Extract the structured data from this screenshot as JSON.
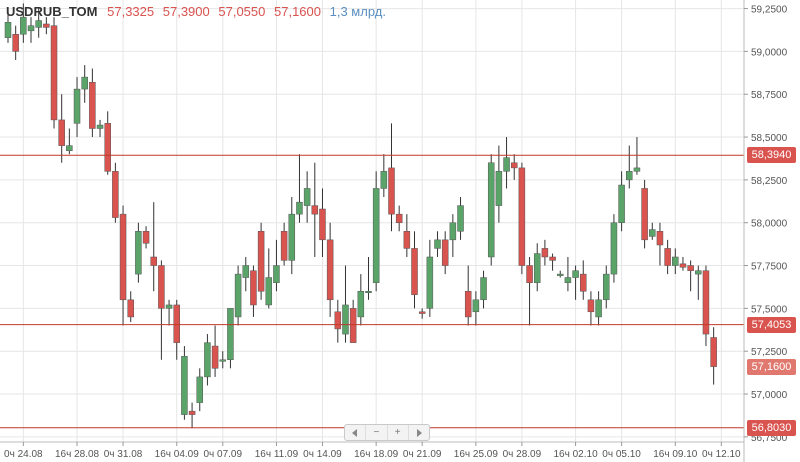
{
  "header": {
    "symbol": "USDRUB_TOM",
    "open": "57,3325",
    "high": "57,3900",
    "low": "57,0550",
    "close": "57,1600",
    "volume": "1,3 млрд."
  },
  "navigator": {
    "left_icon": "arrow-left-icon",
    "zoom_out_label": "−",
    "zoom_in_label": "+",
    "right_icon": "arrow-right-icon"
  },
  "colors": {
    "bull": "#5aa469",
    "bear": "#d9534f",
    "level_line": "#c0392b",
    "grid": "#e6e6e6",
    "axis_text": "#555555"
  },
  "price_tags": [
    {
      "label": "58,3940",
      "value": 58.394,
      "color": "#d9534f"
    },
    {
      "label": "57,4053",
      "value": 57.4053,
      "color": "#d9534f"
    },
    {
      "label": "57,1600",
      "value": 57.16,
      "color": "#e0786f"
    },
    {
      "label": "56,8030",
      "value": 56.803,
      "color": "#d9534f"
    }
  ],
  "chart_data": {
    "type": "candlestick",
    "ylim": [
      56.72,
      59.3
    ],
    "y_ticks": [
      {
        "label": "59,2500",
        "value": 59.25
      },
      {
        "label": "59,0000",
        "value": 59.0
      },
      {
        "label": "58,7500",
        "value": 58.75
      },
      {
        "label": "58,5000",
        "value": 58.5
      },
      {
        "label": "58,2500",
        "value": 58.25
      },
      {
        "label": "58,0000",
        "value": 58.0
      },
      {
        "label": "57,7500",
        "value": 57.75
      },
      {
        "label": "57,5000",
        "value": 57.5
      },
      {
        "label": "57,2500",
        "value": 57.25
      },
      {
        "label": "57,0000",
        "value": 57.0
      },
      {
        "label": "56,7500",
        "value": 56.75
      }
    ],
    "x_labels": [
      {
        "label": "0ч 24.08",
        "index": 2
      },
      {
        "label": "16ч 28.08",
        "index": 9
      },
      {
        "label": "0ч 31.08",
        "index": 15
      },
      {
        "label": "16ч 04.09",
        "index": 22
      },
      {
        "label": "0ч 07.09",
        "index": 28
      },
      {
        "label": "16ч 11.09",
        "index": 35
      },
      {
        "label": "0ч 14.09",
        "index": 41
      },
      {
        "label": "16ч 18.09",
        "index": 48
      },
      {
        "label": "0ч 21.09",
        "index": 54
      },
      {
        "label": "16ч 25.09",
        "index": 61
      },
      {
        "label": "0ч 28.09",
        "index": 67
      },
      {
        "label": "16ч 02.10",
        "index": 74
      },
      {
        "label": "0ч 05.10",
        "index": 80
      },
      {
        "label": "16ч 09.10",
        "index": 87
      },
      {
        "label": "0ч 12.10",
        "index": 93
      }
    ],
    "levels": [
      58.394,
      57.4053,
      56.803
    ],
    "candles": [
      [
        59.08,
        59.17,
        59.25,
        59.05
      ],
      [
        59.1,
        59.0,
        59.15,
        58.95
      ],
      [
        59.1,
        59.2,
        59.28,
        59.05
      ],
      [
        59.12,
        59.15,
        59.2,
        59.05
      ],
      [
        59.14,
        59.18,
        59.25,
        59.08
      ],
      [
        59.16,
        59.14,
        59.2,
        59.1
      ],
      [
        59.15,
        58.6,
        59.2,
        58.55
      ],
      [
        58.6,
        58.45,
        58.75,
        58.35
      ],
      [
        58.42,
        58.45,
        58.55,
        58.4
      ],
      [
        58.58,
        58.78,
        58.85,
        58.5
      ],
      [
        58.78,
        58.85,
        58.92,
        58.7
      ],
      [
        58.82,
        58.55,
        58.9,
        58.5
      ],
      [
        58.55,
        58.57,
        58.6,
        58.5
      ],
      [
        58.58,
        58.3,
        58.65,
        58.28
      ],
      [
        58.3,
        58.03,
        58.35,
        58.0
      ],
      [
        58.05,
        57.55,
        58.1,
        57.4
      ],
      [
        57.55,
        57.45,
        57.6,
        57.42
      ],
      [
        57.7,
        57.95,
        58.0,
        57.65
      ],
      [
        57.95,
        57.88,
        57.98,
        57.85
      ],
      [
        57.8,
        57.75,
        58.12,
        57.6
      ],
      [
        57.75,
        57.5,
        57.78,
        57.2
      ],
      [
        57.5,
        57.52,
        57.55,
        57.4
      ],
      [
        57.52,
        57.3,
        57.55,
        57.2
      ],
      [
        56.88,
        57.22,
        57.28,
        56.85
      ],
      [
        56.9,
        56.88,
        56.95,
        56.8
      ],
      [
        56.95,
        57.1,
        57.15,
        56.9
      ],
      [
        57.1,
        57.3,
        57.35,
        57.05
      ],
      [
        57.28,
        57.15,
        57.4,
        57.1
      ],
      [
        57.2,
        57.2,
        57.25,
        57.15
      ],
      [
        57.2,
        57.5,
        57.5,
        57.15
      ],
      [
        57.45,
        57.7,
        57.75,
        57.4
      ],
      [
        57.68,
        57.75,
        57.8,
        57.6
      ],
      [
        57.72,
        57.52,
        57.75,
        57.45
      ],
      [
        57.95,
        57.6,
        58.0,
        57.55
      ],
      [
        57.52,
        57.68,
        57.85,
        57.5
      ],
      [
        57.65,
        57.75,
        57.9,
        57.6
      ],
      [
        57.95,
        57.78,
        58.0,
        57.75
      ],
      [
        57.78,
        58.05,
        58.15,
        57.7
      ],
      [
        58.05,
        58.12,
        58.4,
        58.0
      ],
      [
        58.1,
        58.2,
        58.3,
        58.0
      ],
      [
        58.1,
        58.05,
        58.35,
        57.8
      ],
      [
        58.08,
        57.9,
        58.2,
        57.8
      ],
      [
        57.9,
        57.55,
        58.0,
        57.45
      ],
      [
        57.48,
        57.38,
        57.55,
        57.3
      ],
      [
        57.35,
        57.52,
        57.75,
        57.3
      ],
      [
        57.5,
        57.3,
        57.55,
        57.35
      ],
      [
        57.45,
        57.6,
        57.7,
        57.4
      ],
      [
        57.6,
        57.6,
        57.8,
        57.55
      ],
      [
        57.65,
        58.2,
        58.3,
        57.6
      ],
      [
        58.2,
        58.3,
        58.4,
        58.15
      ],
      [
        58.32,
        58.05,
        58.58,
        57.95
      ],
      [
        58.05,
        58.0,
        58.1,
        57.95
      ],
      [
        57.95,
        57.85,
        58.05,
        57.8
      ],
      [
        57.85,
        57.58,
        57.95,
        57.5
      ],
      [
        57.48,
        57.47,
        57.5,
        57.44
      ],
      [
        57.5,
        57.8,
        57.9,
        57.45
      ],
      [
        57.85,
        57.9,
        57.95,
        57.8
      ],
      [
        57.9,
        57.75,
        57.95,
        57.7
      ],
      [
        57.9,
        58.0,
        58.05,
        57.8
      ],
      [
        57.95,
        58.1,
        58.15,
        57.9
      ],
      [
        57.6,
        57.45,
        57.75,
        57.4
      ],
      [
        57.48,
        57.55,
        57.6,
        57.4
      ],
      [
        57.55,
        57.68,
        57.72,
        57.5
      ],
      [
        57.8,
        58.35,
        58.4,
        57.75
      ],
      [
        58.1,
        58.3,
        58.45,
        58.0
      ],
      [
        58.3,
        58.38,
        58.5,
        58.2
      ],
      [
        58.35,
        58.32,
        58.4,
        58.25
      ],
      [
        58.32,
        57.75,
        58.35,
        57.7
      ],
      [
        57.75,
        57.65,
        57.8,
        57.4
      ],
      [
        57.65,
        57.82,
        57.88,
        57.6
      ],
      [
        57.85,
        57.8,
        57.9,
        57.75
      ],
      [
        57.8,
        57.78,
        57.82,
        57.72
      ],
      [
        57.7,
        57.7,
        57.72,
        57.68
      ],
      [
        57.65,
        57.68,
        57.8,
        57.6
      ],
      [
        57.68,
        57.72,
        57.75,
        57.55
      ],
      [
        57.7,
        57.6,
        57.78,
        57.55
      ],
      [
        57.55,
        57.48,
        57.6,
        57.4
      ],
      [
        57.45,
        57.55,
        57.6,
        57.4
      ],
      [
        57.55,
        57.7,
        57.75,
        57.5
      ],
      [
        57.7,
        58.0,
        58.05,
        57.65
      ],
      [
        58.0,
        58.22,
        58.3,
        57.95
      ],
      [
        58.25,
        58.3,
        58.45,
        58.2
      ],
      [
        58.3,
        58.32,
        58.5,
        58.28
      ],
      [
        58.2,
        57.9,
        58.25,
        57.85
      ],
      [
        57.92,
        57.96,
        58.0,
        57.9
      ],
      [
        57.95,
        57.87,
        58.0,
        57.75
      ],
      [
        57.85,
        57.75,
        57.9,
        57.7
      ],
      [
        57.75,
        57.8,
        57.85,
        57.7
      ],
      [
        57.76,
        57.74,
        57.8,
        57.72
      ],
      [
        57.75,
        57.72,
        57.78,
        57.6
      ],
      [
        57.7,
        57.72,
        57.75,
        57.55
      ],
      [
        57.72,
        57.35,
        57.75,
        57.28
      ],
      [
        57.33,
        57.16,
        57.39,
        57.055
      ]
    ]
  }
}
